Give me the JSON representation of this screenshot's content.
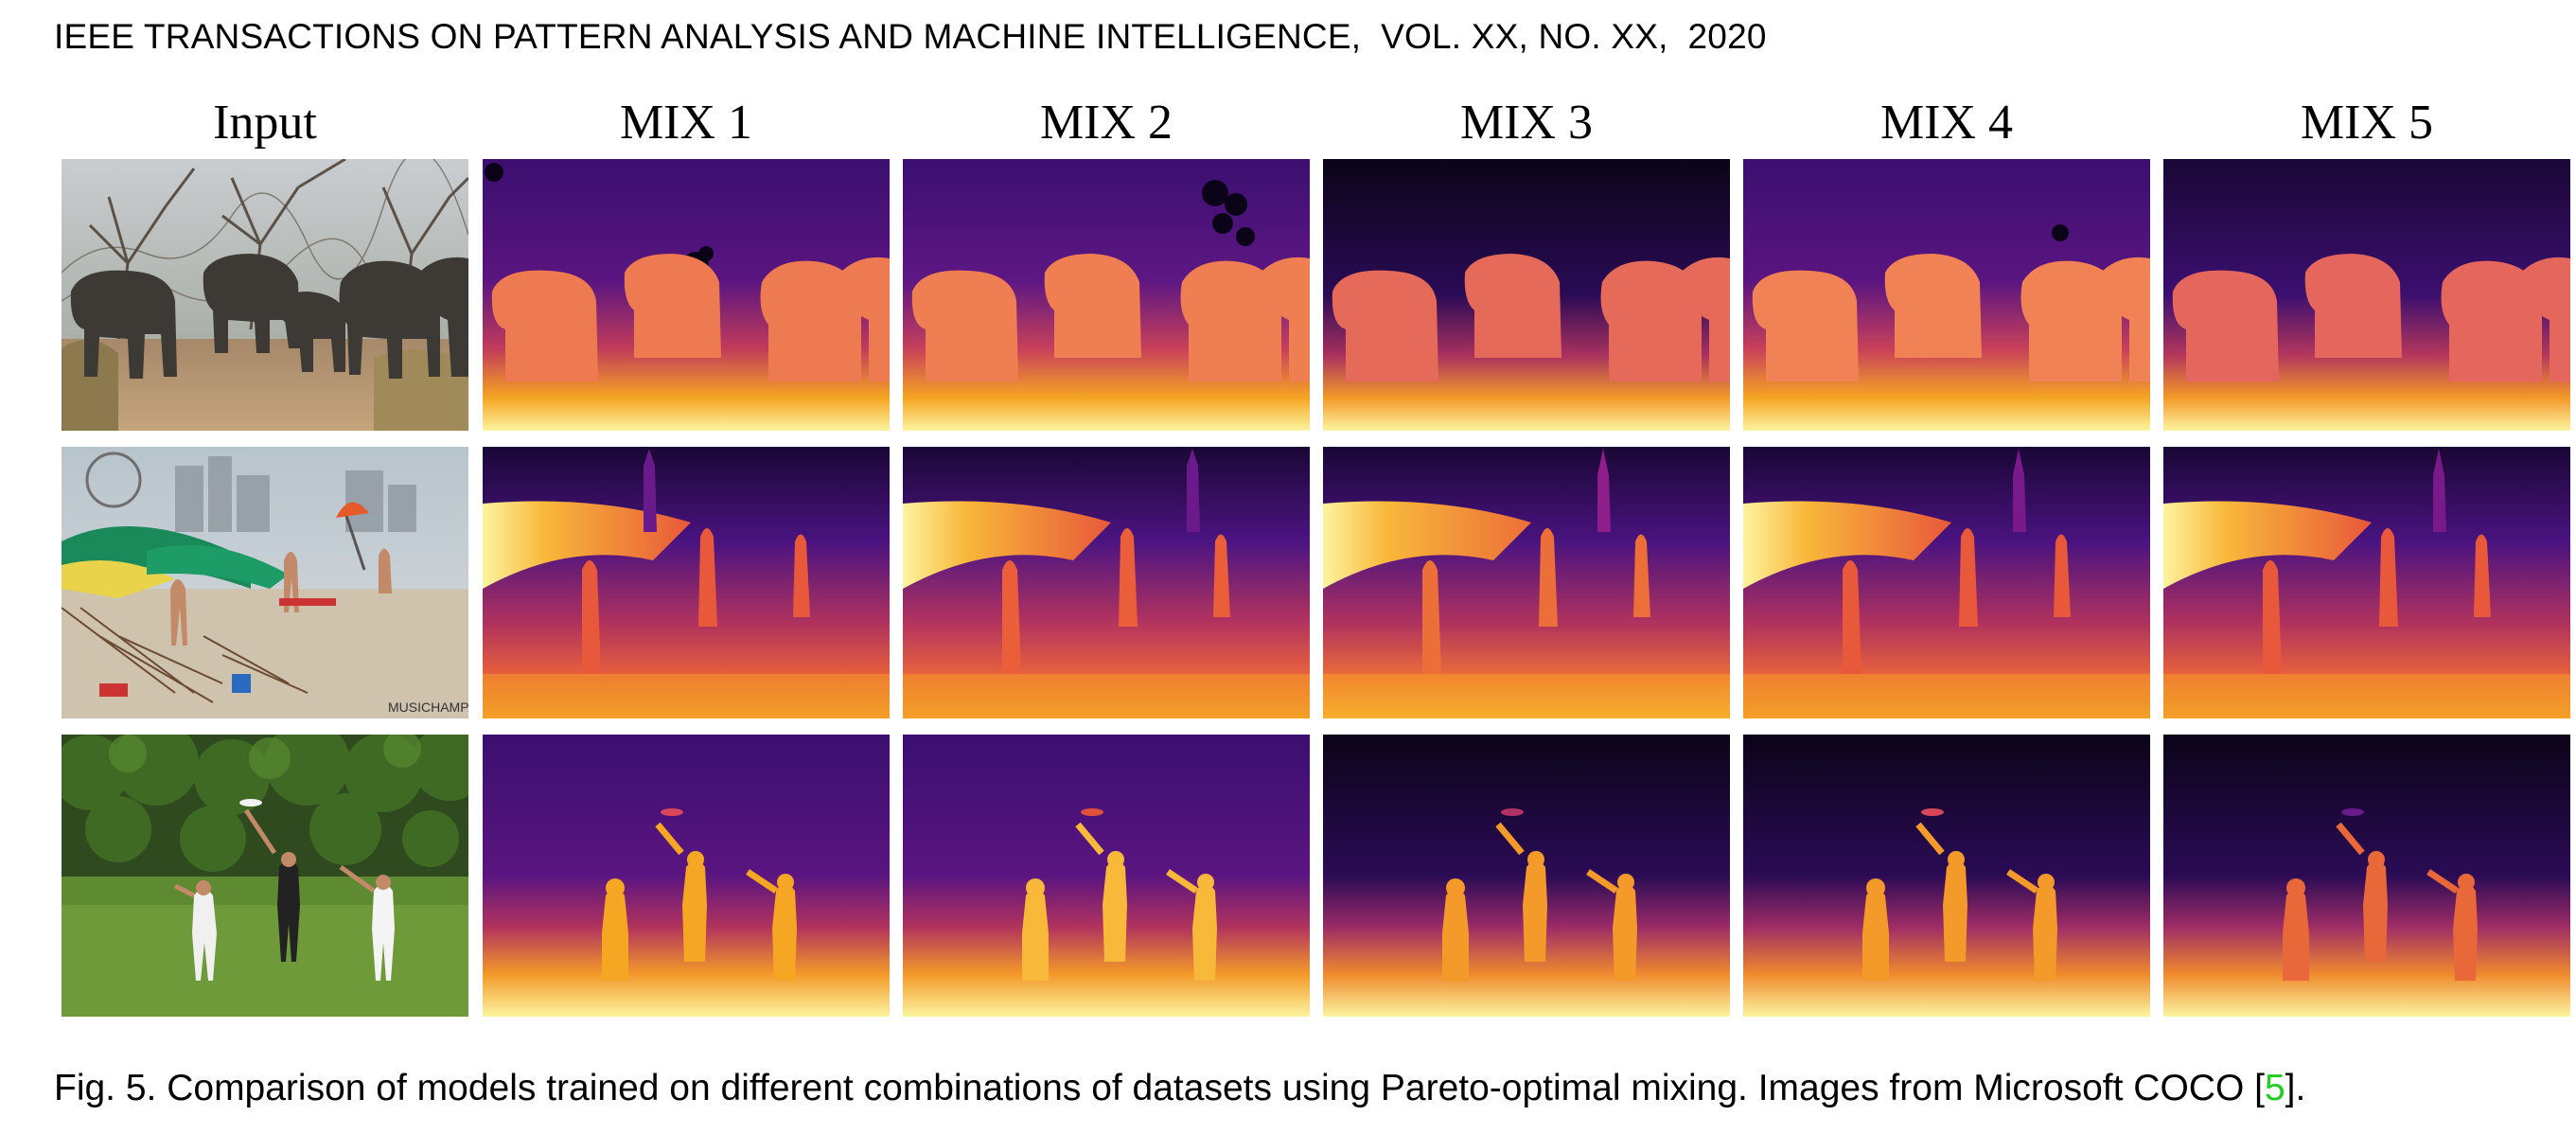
{
  "header": {
    "running_title": "IEEE TRANSACTIONS ON PATTERN ANALYSIS AND MACHINE INTELLIGENCE,  VOL. XX, NO. XX,  2020"
  },
  "figure": {
    "columns": [
      "Input",
      "MIX 1",
      "MIX 2",
      "MIX 3",
      "MIX 4",
      "MIX 5"
    ],
    "rows": [
      {
        "scene": "elephants"
      },
      {
        "scene": "beach"
      },
      {
        "scene": "frisbee"
      }
    ],
    "colormap": "inferno",
    "colors": {
      "near": "#fcf4a0",
      "mid_near": "#f5a623",
      "mid": "#e8583a",
      "mid_far": "#8e1f8a",
      "far": "#3b0f70",
      "farthest": "#0b0418"
    },
    "watermark": "MUSICHAMPAK"
  },
  "caption": {
    "prefix": "Fig. 5. Comparison of models trained on different combinations of datasets using Pareto-optimal mixing. Images from Microsoft COCO [",
    "ref": "5",
    "suffix": "]."
  }
}
